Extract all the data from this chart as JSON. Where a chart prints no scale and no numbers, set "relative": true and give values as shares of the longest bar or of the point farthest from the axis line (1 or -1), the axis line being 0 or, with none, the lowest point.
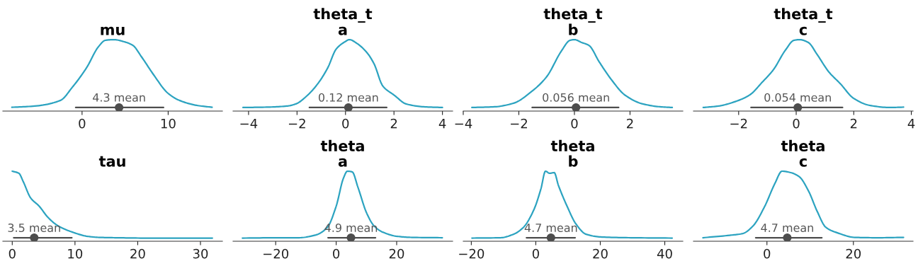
{
  "chart_data": [
    {
      "type": "line",
      "relative": true,
      "title": "mu",
      "xlim": [
        -9.2,
        16.3
      ],
      "xticks": [
        0,
        10
      ],
      "series": [
        {
          "type": "line",
          "color": "#2ca3c0",
          "x": [
            -8.15,
            -5.5,
            -2.5,
            -1.15,
            0.54,
            1.9,
            2.7,
            3.7,
            4.9,
            5.9,
            6.9,
            8.3,
            9.97,
            11.3,
            13.3,
            15.1
          ],
          "values": [
            0.053,
            0.07,
            0.15,
            0.33,
            0.61,
            0.9,
            0.99,
            1.0,
            0.97,
            0.92,
            0.76,
            0.51,
            0.25,
            0.15,
            0.08,
            0.053
          ]
        },
        {
          "type": "line",
          "color": "#4d4d4d",
          "x": [
            -0.74,
            9.46
          ],
          "values": [
            0.05,
            0.05
          ]
        },
        {
          "type": "scatter",
          "color": "#4d4d4d",
          "x": [
            4.3
          ],
          "values": [
            0.05
          ]
        }
      ],
      "annotations": [
        {
          "text": "4.3 mean",
          "x": 4.3,
          "y": 0.1
        }
      ]
    },
    {
      "type": "line",
      "relative": true,
      "title": "theta_t\na",
      "xlim": [
        -4.64,
        4.42
      ],
      "xticks": [
        {
          "value": -4,
          "label": "−4"
        },
        {
          "value": -2,
          "label": "−2"
        },
        0,
        2,
        4
      ],
      "series": [
        {
          "type": "line",
          "color": "#2ca3c0",
          "x": [
            -4.23,
            -3.26,
            -2.42,
            -2.05,
            -1.57,
            -1.15,
            -0.74,
            -0.38,
            -0.02,
            0.16,
            0.46,
            0.88,
            1.18,
            1.54,
            2.02,
            2.5,
            3.22,
            4.0
          ],
          "values": [
            0.05,
            0.055,
            0.07,
            0.1,
            0.22,
            0.38,
            0.6,
            0.87,
            0.97,
            1.0,
            0.95,
            0.82,
            0.66,
            0.35,
            0.22,
            0.1,
            0.06,
            0.05
          ]
        },
        {
          "type": "line",
          "color": "#4d4d4d",
          "x": [
            -1.49,
            1.7
          ],
          "values": [
            0.05,
            0.05
          ]
        },
        {
          "type": "scatter",
          "color": "#4d4d4d",
          "x": [
            0.12
          ],
          "values": [
            0.05
          ]
        }
      ],
      "annotations": [
        {
          "text": "0.12 mean",
          "x": 0.12,
          "y": 0.1
        }
      ]
    },
    {
      "type": "line",
      "relative": true,
      "title": "theta_t\nb",
      "xlim": [
        -4.0,
        3.9
      ],
      "xticks": [
        {
          "value": -4,
          "label": "−4"
        },
        {
          "value": -2,
          "label": "−2"
        },
        0,
        2
      ],
      "series": [
        {
          "type": "line",
          "color": "#2ca3c0",
          "x": [
            -3.69,
            -2.87,
            -2.19,
            -1.52,
            -1.0,
            -0.47,
            -0.16,
            0,
            0.26,
            0.52,
            0.89,
            1.31,
            1.83,
            2.46,
            3.08,
            3.52
          ],
          "values": [
            0.05,
            0.06,
            0.11,
            0.28,
            0.48,
            0.84,
            0.99,
            1.0,
            0.96,
            0.92,
            0.69,
            0.45,
            0.22,
            0.1,
            0.06,
            0.05
          ]
        },
        {
          "type": "line",
          "color": "#4d4d4d",
          "x": [
            -1.52,
            1.59
          ],
          "values": [
            0.05,
            0.05
          ]
        },
        {
          "type": "scatter",
          "color": "#4d4d4d",
          "x": [
            0.056
          ],
          "values": [
            0.05
          ]
        }
      ],
      "annotations": [
        {
          "text": "0.056 mean",
          "x": 0.056,
          "y": 0.1
        }
      ]
    },
    {
      "type": "line",
      "relative": true,
      "title": "theta_t\nc",
      "xlim": [
        -3.57,
        4.06
      ],
      "xticks": [
        {
          "value": -2,
          "label": "−2"
        },
        0,
        2,
        4
      ],
      "series": [
        {
          "type": "line",
          "color": "#2ca3c0",
          "x": [
            -3.23,
            -2.71,
            -2.0,
            -1.6,
            -1.19,
            -0.79,
            -0.38,
            -0.08,
            0.12,
            0.42,
            0.73,
            1.13,
            1.54,
            1.99,
            2.55,
            3.25,
            3.73
          ],
          "values": [
            0.05,
            0.07,
            0.15,
            0.23,
            0.4,
            0.58,
            0.85,
            0.99,
            1.0,
            0.96,
            0.79,
            0.55,
            0.38,
            0.18,
            0.08,
            0.05,
            0.055
          ]
        },
        {
          "type": "line",
          "color": "#4d4d4d",
          "x": [
            -1.57,
            1.61
          ],
          "values": [
            0.05,
            0.05
          ]
        },
        {
          "type": "scatter",
          "color": "#4d4d4d",
          "x": [
            0.054
          ],
          "values": [
            0.05
          ]
        }
      ],
      "annotations": [
        {
          "text": "0.054 mean",
          "x": 0.054,
          "y": 0.1
        }
      ]
    },
    {
      "type": "line",
      "relative": true,
      "title": "tau",
      "xlim": [
        -1.5,
        33.5
      ],
      "xticks": [
        0,
        10,
        20,
        30
      ],
      "series": [
        {
          "type": "line",
          "color": "#2ca3c0",
          "x": [
            0,
            1.06,
            1.76,
            2.92,
            4.3,
            5.7,
            7.3,
            9.6,
            12.0,
            13.8,
            16.6,
            21.2,
            25.8,
            31.9
          ],
          "values": [
            1.0,
            0.97,
            0.85,
            0.62,
            0.5,
            0.34,
            0.22,
            0.13,
            0.07,
            0.055,
            0.05,
            0.045,
            0.045,
            0.045
          ]
        },
        {
          "type": "line",
          "color": "#4d4d4d",
          "x": [
            0.23,
            9.5
          ],
          "values": [
            0.05,
            0.05
          ]
        },
        {
          "type": "scatter",
          "color": "#4d4d4d",
          "x": [
            3.5
          ],
          "values": [
            0.05
          ]
        }
      ],
      "annotations": [
        {
          "text": "3.5 mean",
          "x": 3.5,
          "y": 0.1
        }
      ]
    },
    {
      "type": "line",
      "relative": true,
      "title": "theta\na",
      "xlim": [
        -34.1,
        38.5
      ],
      "xticks": [
        {
          "value": -20,
          "label": "−20"
        },
        0,
        20
      ],
      "series": [
        {
          "type": "line",
          "color": "#2ca3c0",
          "x": [
            -31,
            -17.3,
            -12.5,
            -6.7,
            -2.9,
            0,
            2.4,
            3.7,
            5.3,
            7.2,
            10.1,
            12.5,
            15.4,
            20.2,
            25,
            35.1
          ],
          "values": [
            0.045,
            0.05,
            0.05,
            0.09,
            0.2,
            0.5,
            0.9,
            1.0,
            0.99,
            0.77,
            0.4,
            0.22,
            0.13,
            0.07,
            0.055,
            0.05
          ]
        },
        {
          "type": "line",
          "color": "#4d4d4d",
          "x": [
            -2.7,
            13.0
          ],
          "values": [
            0.05,
            0.05
          ]
        },
        {
          "type": "scatter",
          "color": "#4d4d4d",
          "x": [
            4.9
          ],
          "values": [
            0.05
          ]
        }
      ],
      "annotations": [
        {
          "text": "4.9 mean",
          "x": 4.9,
          "y": 0.1
        }
      ]
    },
    {
      "type": "line",
      "relative": true,
      "title": "theta\nb",
      "xlim": [
        -22.5,
        45.6
      ],
      "xticks": [
        {
          "value": -20,
          "label": "−20"
        },
        0,
        20,
        40
      ],
      "series": [
        {
          "type": "line",
          "color": "#2ca3c0",
          "x": [
            -19.8,
            -11,
            -6.9,
            -3.8,
            -0.6,
            1.6,
            3.0,
            4.3,
            5.7,
            7.0,
            9.7,
            12.4,
            15.6,
            20.5,
            29.5,
            42.3
          ],
          "values": [
            0.045,
            0.05,
            0.1,
            0.2,
            0.45,
            0.75,
            1.0,
            0.97,
            0.98,
            0.8,
            0.5,
            0.25,
            0.1,
            0.06,
            0.05,
            0.045
          ]
        },
        {
          "type": "line",
          "color": "#4d4d4d",
          "x": [
            -2.9,
            12.2
          ],
          "values": [
            0.05,
            0.05
          ]
        },
        {
          "type": "scatter",
          "color": "#4d4d4d",
          "x": [
            4.7
          ],
          "values": [
            0.05
          ]
        }
      ],
      "annotations": [
        {
          "text": "4.7 mean",
          "x": 4.7,
          "y": 0.1
        }
      ]
    },
    {
      "type": "line",
      "relative": true,
      "title": "theta\nc",
      "xlim": [
        -17.0,
        33.8
      ],
      "xticks": [
        0,
        20
      ],
      "series": [
        {
          "type": "line",
          "color": "#2ca3c0",
          "x": [
            -14.8,
            -8.6,
            -5.6,
            -3.2,
            -0.5,
            1.8,
            3.5,
            5.5,
            7.5,
            9.6,
            11.6,
            13.6,
            16.3,
            20.3,
            25.7,
            31.6
          ],
          "values": [
            0.05,
            0.085,
            0.11,
            0.22,
            0.5,
            0.82,
            1.0,
            0.98,
            0.92,
            0.72,
            0.43,
            0.2,
            0.12,
            0.055,
            0.05,
            0.055
          ]
        },
        {
          "type": "line",
          "color": "#4d4d4d",
          "x": [
            -2.6,
            12.7
          ],
          "values": [
            0.05,
            0.05
          ]
        },
        {
          "type": "scatter",
          "color": "#4d4d4d",
          "x": [
            4.7
          ],
          "values": [
            0.05
          ]
        }
      ],
      "annotations": [
        {
          "text": "4.7 mean",
          "x": 4.7,
          "y": 0.1
        }
      ]
    }
  ]
}
